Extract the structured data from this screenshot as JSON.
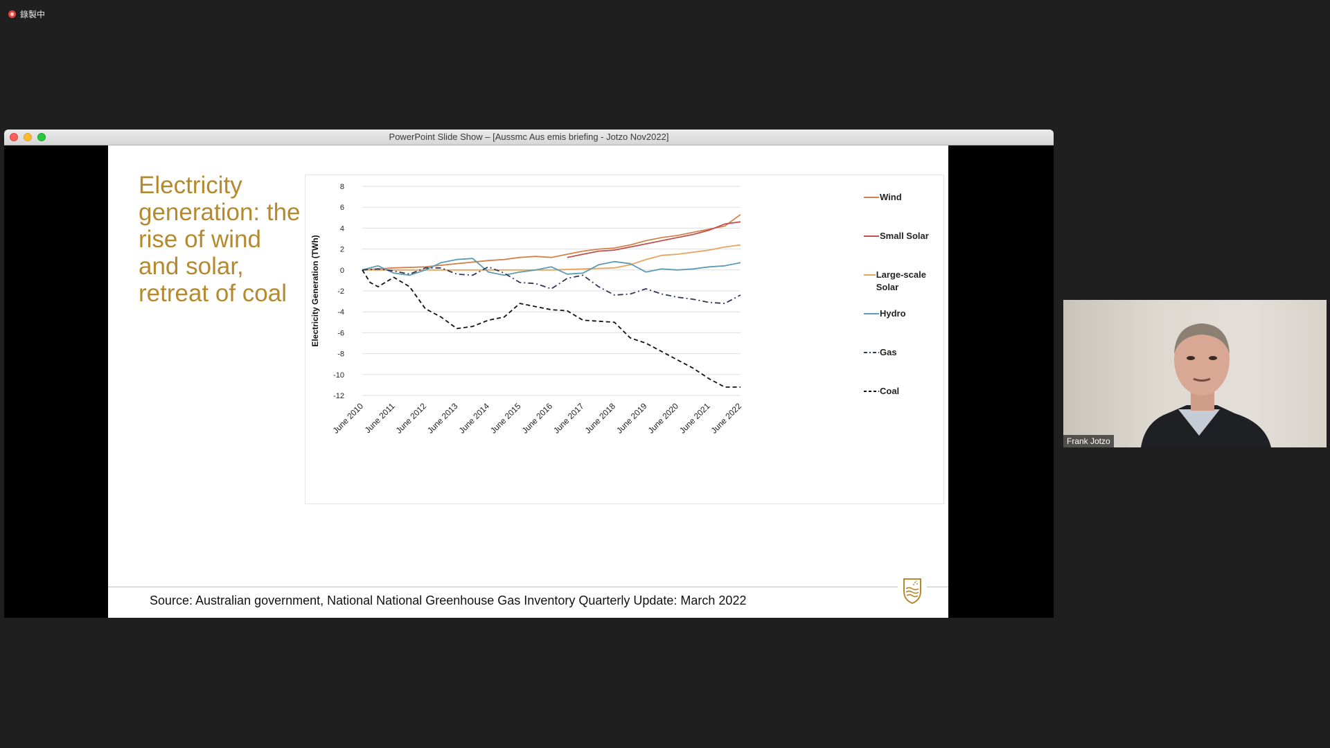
{
  "recording": {
    "label": "錄製中"
  },
  "window": {
    "title": "PowerPoint Slide Show – [Aussmc Aus emis briefing - Jotzo Nov2022]"
  },
  "slide": {
    "heading": "Electricity generation: the rise of wind and solar, retreat of coal",
    "source": "Source: Australian government, National National Greenhouse Gas Inventory Quarterly Update: March 2022"
  },
  "participant": {
    "name": "Frank Jotzo"
  },
  "chart_data": {
    "type": "line",
    "title": "",
    "xlabel": "",
    "ylabel": "Electricity Generation (TWh)",
    "ylim": [
      -12,
      8
    ],
    "yticks": [
      8,
      6,
      4,
      2,
      0,
      -2,
      -4,
      -6,
      -8,
      -10,
      -12
    ],
    "grid": "horizontal",
    "legend_position": "right",
    "x_labels": [
      "June 2010",
      "June 2011",
      "June 2012",
      "June 2013",
      "June 2014",
      "June 2015",
      "June 2016",
      "June 2017",
      "June 2018",
      "June 2019",
      "June 2020",
      "June 2021",
      "June 2022"
    ],
    "series": [
      {
        "name": "Wind",
        "color": "#d2824a",
        "dash": "solid",
        "x": [
          2010,
          2011,
          2012,
          2013,
          2014,
          2014.5,
          2015,
          2015.5,
          2016,
          2016.5,
          2017,
          2017.5,
          2018,
          2018.5,
          2019,
          2019.5,
          2020,
          2020.5,
          2021,
          2021.5,
          2022
        ],
        "y": [
          0,
          0.2,
          0.3,
          0.6,
          0.9,
          1.0,
          1.2,
          1.3,
          1.2,
          1.5,
          1.8,
          2.0,
          2.1,
          2.4,
          2.8,
          3.1,
          3.3,
          3.6,
          3.9,
          4.2,
          5.3
        ]
      },
      {
        "name": "Small Solar",
        "color": "#c0504d",
        "dash": "solid",
        "x": [
          2016.5,
          2017,
          2017.5,
          2018,
          2018.5,
          2019,
          2019.5,
          2020,
          2020.5,
          2021,
          2021.5,
          2022
        ],
        "y": [
          1.2,
          1.5,
          1.8,
          1.9,
          2.2,
          2.5,
          2.8,
          3.1,
          3.4,
          3.8,
          4.4,
          4.6
        ]
      },
      {
        "name": "Large-scale Solar",
        "color": "#eaa35b",
        "dash": "solid",
        "x": [
          2010,
          2011,
          2012,
          2013,
          2014,
          2015,
          2016,
          2017,
          2018,
          2018.5,
          2019,
          2019.5,
          2020,
          2020.5,
          2021,
          2021.5,
          2022
        ],
        "y": [
          0,
          0,
          0,
          0,
          0,
          0,
          0,
          0.1,
          0.2,
          0.5,
          1.0,
          1.4,
          1.5,
          1.7,
          1.9,
          2.2,
          2.4
        ]
      },
      {
        "name": "Hydro",
        "color": "#5b9bb5",
        "dash": "solid",
        "x": [
          2010,
          2010.5,
          2011,
          2011.5,
          2012,
          2012.5,
          2013,
          2013.5,
          2014,
          2014.5,
          2015,
          2015.5,
          2016,
          2016.5,
          2017,
          2017.5,
          2018,
          2018.5,
          2019,
          2019.5,
          2020,
          2020.5,
          2021,
          2021.5,
          2022
        ],
        "y": [
          0,
          0.4,
          -0.3,
          -0.5,
          0,
          0.7,
          1.0,
          1.1,
          -0.2,
          -0.5,
          -0.2,
          0,
          0.3,
          -0.4,
          -0.3,
          0.5,
          0.8,
          0.6,
          -0.2,
          0.1,
          0,
          0.1,
          0.3,
          0.4,
          0.7
        ]
      },
      {
        "name": "Gas",
        "color": "#2f3757",
        "dash": "dashdot",
        "x": [
          2010,
          2010.5,
          2011,
          2011.5,
          2012,
          2012.5,
          2013,
          2013.5,
          2014,
          2014.5,
          2015,
          2015.5,
          2016,
          2016.5,
          2017,
          2017.5,
          2018,
          2018.5,
          2019,
          2019.5,
          2020,
          2020.5,
          2021,
          2021.5,
          2022
        ],
        "y": [
          0,
          0.1,
          -0.1,
          -0.4,
          0.2,
          0.2,
          -0.4,
          -0.5,
          0.3,
          -0.3,
          -1.2,
          -1.3,
          -1.8,
          -0.8,
          -0.5,
          -1.6,
          -2.4,
          -2.3,
          -1.8,
          -2.3,
          -2.6,
          -2.8,
          -3.1,
          -3.2,
          -2.4
        ]
      },
      {
        "name": "Coal",
        "color": "#111111",
        "dash": "dashed",
        "x": [
          2010,
          2010.25,
          2010.5,
          2011,
          2011.5,
          2012,
          2012.5,
          2013,
          2013.5,
          2014,
          2014.5,
          2015,
          2015.5,
          2016,
          2016.5,
          2017,
          2017.5,
          2018,
          2018.5,
          2019,
          2019.5,
          2020,
          2020.5,
          2021,
          2021.5,
          2022
        ],
        "y": [
          0,
          -1.2,
          -1.6,
          -0.7,
          -1.6,
          -3.7,
          -4.5,
          -5.6,
          -5.4,
          -4.8,
          -4.5,
          -3.2,
          -3.5,
          -3.8,
          -3.9,
          -4.8,
          -4.9,
          -5.0,
          -6.5,
          -7.0,
          -7.8,
          -8.6,
          -9.4,
          -10.4,
          -11.2,
          -11.2
        ]
      }
    ]
  }
}
